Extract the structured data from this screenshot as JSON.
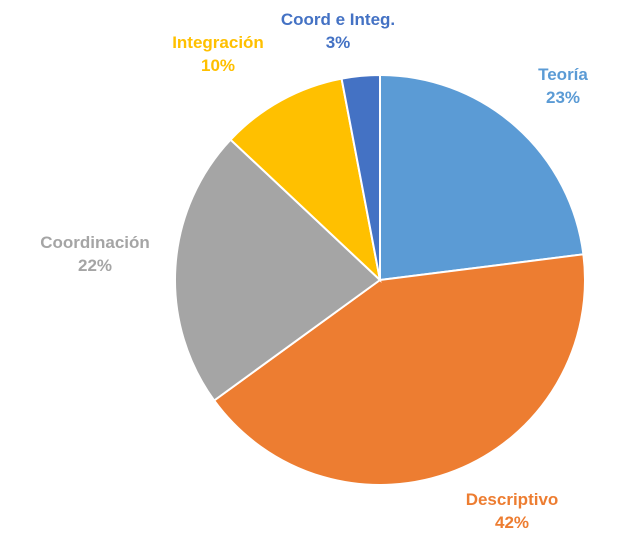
{
  "chart_data": {
    "type": "pie",
    "title": "",
    "slices": [
      {
        "label": "Teoría",
        "value": 23,
        "value_text": "23%",
        "color": "#5B9BD5"
      },
      {
        "label": "Descriptivo",
        "value": 42,
        "value_text": "42%",
        "color": "#ED7D31"
      },
      {
        "label": "Coordinación",
        "value": 22,
        "value_text": "22%",
        "color": "#A5A5A5"
      },
      {
        "label": "Integración",
        "value": 10,
        "value_text": "10%",
        "color": "#FFC000"
      },
      {
        "label": "Coord e Integ.",
        "value": 3,
        "value_text": "3%",
        "color": "#4472C4"
      }
    ],
    "start_angle_deg": 0,
    "direction": "clockwise",
    "legend": "none",
    "data_labels": "outside"
  }
}
